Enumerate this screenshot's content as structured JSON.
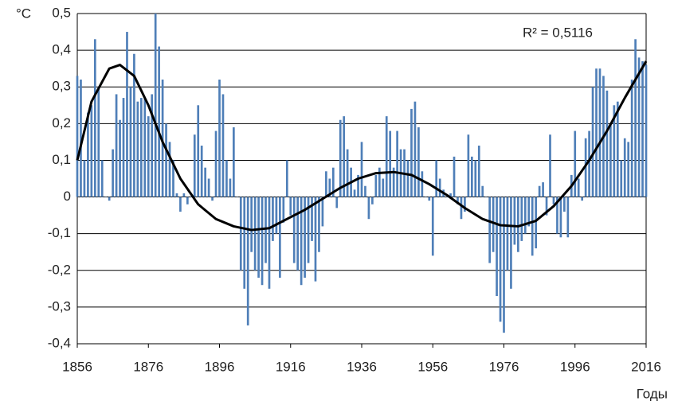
{
  "chart_data": {
    "type": "bar",
    "y_label": "°C",
    "x_label": "Годы",
    "annotation": "R² = 0,5116",
    "color": "#4f7fb8",
    "grid": true,
    "x": [
      1856,
      1857,
      1858,
      1859,
      1860,
      1861,
      1862,
      1863,
      1864,
      1865,
      1866,
      1867,
      1868,
      1869,
      1870,
      1871,
      1872,
      1873,
      1874,
      1875,
      1876,
      1877,
      1878,
      1879,
      1880,
      1881,
      1882,
      1883,
      1884,
      1885,
      1886,
      1887,
      1888,
      1889,
      1890,
      1891,
      1892,
      1893,
      1894,
      1895,
      1896,
      1897,
      1898,
      1899,
      1900,
      1901,
      1902,
      1903,
      1904,
      1905,
      1906,
      1907,
      1908,
      1909,
      1910,
      1911,
      1912,
      1913,
      1914,
      1915,
      1916,
      1917,
      1918,
      1919,
      1920,
      1921,
      1922,
      1923,
      1924,
      1925,
      1926,
      1927,
      1928,
      1929,
      1930,
      1931,
      1932,
      1933,
      1934,
      1935,
      1936,
      1937,
      1938,
      1939,
      1940,
      1941,
      1942,
      1943,
      1944,
      1945,
      1946,
      1947,
      1948,
      1949,
      1950,
      1951,
      1952,
      1953,
      1954,
      1955,
      1956,
      1957,
      1958,
      1959,
      1960,
      1961,
      1962,
      1963,
      1964,
      1965,
      1966,
      1967,
      1968,
      1969,
      1970,
      1971,
      1972,
      1973,
      1974,
      1975,
      1976,
      1977,
      1978,
      1979,
      1980,
      1981,
      1982,
      1983,
      1984,
      1985,
      1986,
      1987,
      1988,
      1989,
      1990,
      1991,
      1992,
      1993,
      1994,
      1995,
      1996,
      1997,
      1998,
      1999,
      2000,
      2001,
      2002,
      2003,
      2004,
      2005,
      2006,
      2007,
      2008,
      2009,
      2010,
      2011,
      2012,
      2013,
      2014,
      2015,
      2016
    ],
    "values": [
      0.33,
      0.32,
      0.1,
      0.23,
      0.25,
      0.43,
      0.3,
      0.1,
      0,
      -0.01,
      0.13,
      0.28,
      0.21,
      0.27,
      0.45,
      0.3,
      0.39,
      0.26,
      0.27,
      0.27,
      0.22,
      0.28,
      0.5,
      0.41,
      0.32,
      0.2,
      0.15,
      0.1,
      0.01,
      -0.04,
      0.01,
      -0.02,
      0,
      0.17,
      0.25,
      0.14,
      0.08,
      0.05,
      -0.01,
      0.18,
      0.32,
      0.28,
      0.1,
      0.05,
      0.19,
      0.0,
      -0.2,
      -0.25,
      -0.35,
      -0.15,
      -0.2,
      -0.22,
      -0.24,
      -0.18,
      -0.25,
      -0.12,
      -0.1,
      -0.22,
      -0.07,
      0.1,
      -0.05,
      -0.18,
      -0.2,
      -0.24,
      -0.22,
      -0.18,
      -0.12,
      -0.23,
      -0.15,
      -0.08,
      0.07,
      0.05,
      0.08,
      -0.03,
      0.21,
      0.22,
      0.13,
      0.08,
      0.02,
      0.06,
      0.15,
      0.03,
      -0.06,
      -0.02,
      0.06,
      0.08,
      0.05,
      0.22,
      0.18,
      0.08,
      0.18,
      0.13,
      0.13,
      0.1,
      0.24,
      0.26,
      0.19,
      0.07,
      0,
      -0.01,
      -0.16,
      0.1,
      0.05,
      0.02,
      0,
      0.01,
      0.11,
      -0.02,
      -0.06,
      -0.04,
      0.17,
      0.11,
      0.1,
      0.14,
      0.03,
      0,
      -0.18,
      -0.15,
      -0.27,
      -0.34,
      -0.37,
      -0.2,
      -0.25,
      -0.13,
      -0.15,
      -0.12,
      -0.1,
      -0.08,
      -0.16,
      -0.14,
      0.03,
      0.04,
      -0.05,
      0.17,
      -0.02,
      -0.1,
      -0.11,
      -0.04,
      -0.11,
      0.06,
      0.18,
      0.05,
      -0.01,
      0.16,
      0.18,
      0.3,
      0.35,
      0.35,
      0.33,
      0.29,
      0.2,
      0.25,
      0.26,
      0.1,
      0.16,
      0.15,
      0.32,
      0.43,
      0.38,
      0.37,
      0.36
    ],
    "trend": {
      "color": "#000000",
      "x": [
        1856,
        1860,
        1865,
        1868,
        1872,
        1876,
        1880,
        1885,
        1890,
        1895,
        1900,
        1905,
        1910,
        1915,
        1920,
        1925,
        1930,
        1935,
        1940,
        1945,
        1950,
        1955,
        1960,
        1965,
        1970,
        1975,
        1980,
        1985,
        1990,
        1995,
        2000,
        2005,
        2010,
        2016
      ],
      "values": [
        0.1,
        0.26,
        0.35,
        0.36,
        0.33,
        0.25,
        0.15,
        0.05,
        -0.02,
        -0.06,
        -0.08,
        -0.09,
        -0.085,
        -0.06,
        -0.035,
        -0.005,
        0.025,
        0.05,
        0.065,
        0.068,
        0.06,
        0.035,
        0.005,
        -0.03,
        -0.06,
        -0.077,
        -0.08,
        -0.065,
        -0.025,
        0.03,
        0.1,
        0.18,
        0.27,
        0.37
      ]
    },
    "xlim": [
      1856,
      2016
    ],
    "xticks": [
      1856,
      1876,
      1896,
      1916,
      1936,
      1956,
      1976,
      1996,
      2016
    ],
    "ylim": [
      -0.4,
      0.5
    ],
    "yticks": [
      {
        "value": -0.4,
        "label": "-0,4"
      },
      {
        "value": -0.3,
        "label": "-0,3"
      },
      {
        "value": -0.2,
        "label": "-0,2"
      },
      {
        "value": -0.1,
        "label": "-0,1"
      },
      0,
      {
        "value": 0.1,
        "label": "0,1"
      },
      {
        "value": 0.2,
        "label": "0,2"
      },
      {
        "value": 0.3,
        "label": "0,3"
      },
      {
        "value": 0.4,
        "label": "0,4"
      },
      {
        "value": 0.5,
        "label": "0,5"
      }
    ]
  }
}
